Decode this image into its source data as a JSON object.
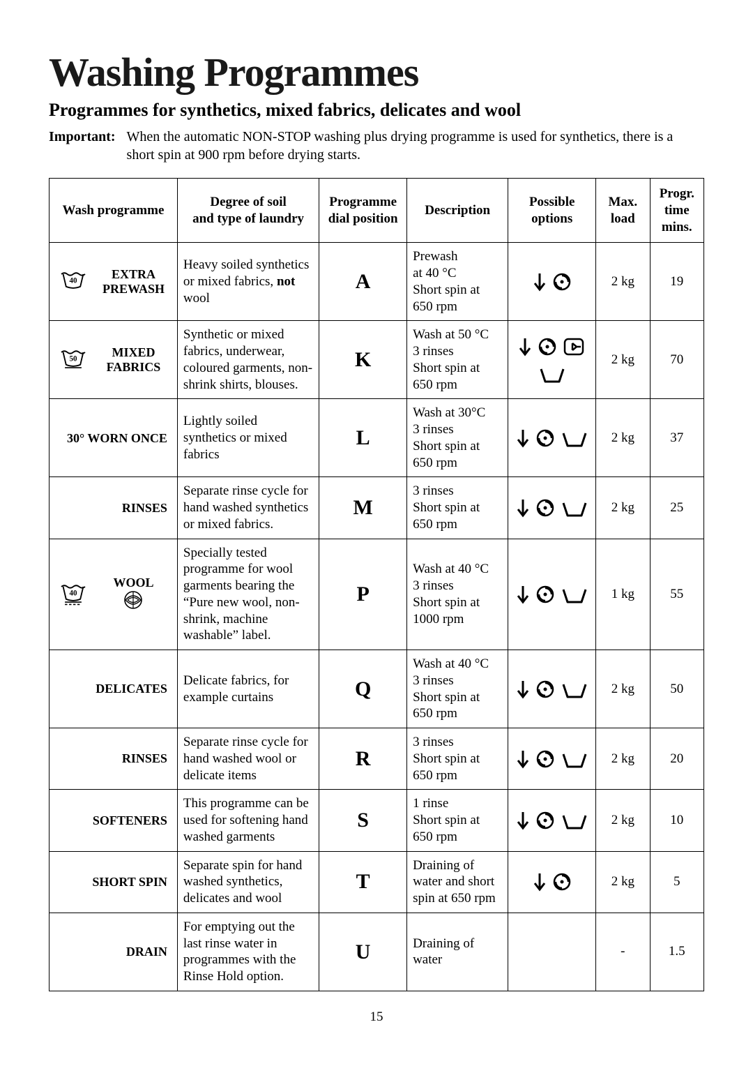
{
  "title": "Washing Programmes",
  "subtitle": "Programmes for synthetics, mixed fabrics, delicates and wool",
  "important_label": "Important:",
  "important_text": "When the automatic NON-STOP washing plus drying programme is used for synthetics, there is a short spin  at 900 rpm before drying starts.",
  "headers": {
    "c1": "Wash programme",
    "c2_l1": "Degree of soil",
    "c2_l2": "and type of laundry",
    "c3_l1": "Programme",
    "c3_l2": "dial position",
    "c4": "Description",
    "c5_l1": "Possible",
    "c5_l2": "options",
    "c6_l1": "Max.",
    "c6_l2": "load",
    "c7_l1": "Progr.",
    "c7_l2": "time",
    "c7_l3": "mins."
  },
  "rows": [
    {
      "icon": "tub40",
      "label_l1": "EXTRA",
      "label_l2": "PREWASH",
      "soil": "Heavy soiled synthetics or mixed fabrics, <b>not</b> wool",
      "dial": "A",
      "desc": "Prewash\nat 40 °C\nShort spin at 650 rpm",
      "options": [
        "down",
        "spin"
      ],
      "load": "2 kg",
      "time": "19"
    },
    {
      "icon": "tub50u",
      "label_l1": "MIXED",
      "label_l2": "FABRICS",
      "soil": "Synthetic or mixed fabrics, underwear, coloured garments, non-shrink shirts, blouses.",
      "dial": "K",
      "desc": "Wash at 50 °C\n3 rinses\nShort spin at 650 rpm",
      "options": [
        "down",
        "spin",
        "door",
        "basin"
      ],
      "load": "2 kg",
      "time": "70"
    },
    {
      "icon": "",
      "label_full": "30° WORN ONCE",
      "soil": "Lightly soiled synthetics or mixed fabrics",
      "dial": "L",
      "desc": "Wash at 30°C\n3 rinses\nShort spin at 650 rpm",
      "options": [
        "down",
        "spin",
        "basin"
      ],
      "load": "2 kg",
      "time": "37"
    },
    {
      "icon": "",
      "label_full": "RINSES",
      "soil": "Separate rinse cycle for hand washed synthetics or mixed fabrics.",
      "dial": "M",
      "desc": "3 rinses\nShort spin at 650 rpm",
      "options": [
        "down",
        "spin",
        "basin"
      ],
      "load": "2 kg",
      "time": "25"
    },
    {
      "icon": "tub40u_wool",
      "label_l1": "WOOL",
      "label_l2": "",
      "soil": "Specially tested programme for wool garments bearing the “Pure new wool, non-shrink, machine washable” label.",
      "dial": "P",
      "desc": "Wash at 40 °C\n3 rinses\nShort spin at 1000 rpm",
      "options": [
        "down",
        "spin",
        "basin"
      ],
      "load": "1 kg",
      "time": "55"
    },
    {
      "icon": "tub40u",
      "label_full": "DELICATES",
      "soil": "Delicate fabrics, for example curtains",
      "dial": "Q",
      "desc": "Wash at 40 °C\n3 rinses\nShort spin at 650 rpm",
      "options": [
        "down",
        "spin",
        "basin"
      ],
      "load": "2 kg",
      "time": "50"
    },
    {
      "icon": "",
      "label_full": "RINSES",
      "soil": "Separate rinse cycle for hand washed wool or delicate items",
      "dial": "R",
      "desc": "3 rinses\nShort spin at 650 rpm",
      "options": [
        "down",
        "spin",
        "basin"
      ],
      "load": "2 kg",
      "time": "20"
    },
    {
      "icon": "",
      "label_full": "SOFTENERS",
      "soil": "This programme can be used for softening hand washed garments",
      "dial": "S",
      "desc": "1 rinse\nShort spin at 650 rpm",
      "options": [
        "down",
        "spin",
        "basin"
      ],
      "load": "2 kg",
      "time": "10"
    },
    {
      "icon": "",
      "label_full": "SHORT SPIN",
      "soil": "Separate spin for hand washed synthetics, delicates and wool",
      "dial": "T",
      "desc": "Draining of water and short spin at 650 rpm",
      "options": [
        "down",
        "spin"
      ],
      "load": "2 kg",
      "time": "5"
    },
    {
      "icon": "",
      "label_full": "DRAIN",
      "soil": "For emptying out the last rinse water in programmes with the Rinse Hold option.",
      "dial": "U",
      "desc": "Draining of water",
      "options": [],
      "load": "-",
      "time": "1.5"
    }
  ],
  "page_number": "15",
  "colors": {
    "text": "#000000",
    "border": "#000000",
    "bg": "#ffffff"
  }
}
